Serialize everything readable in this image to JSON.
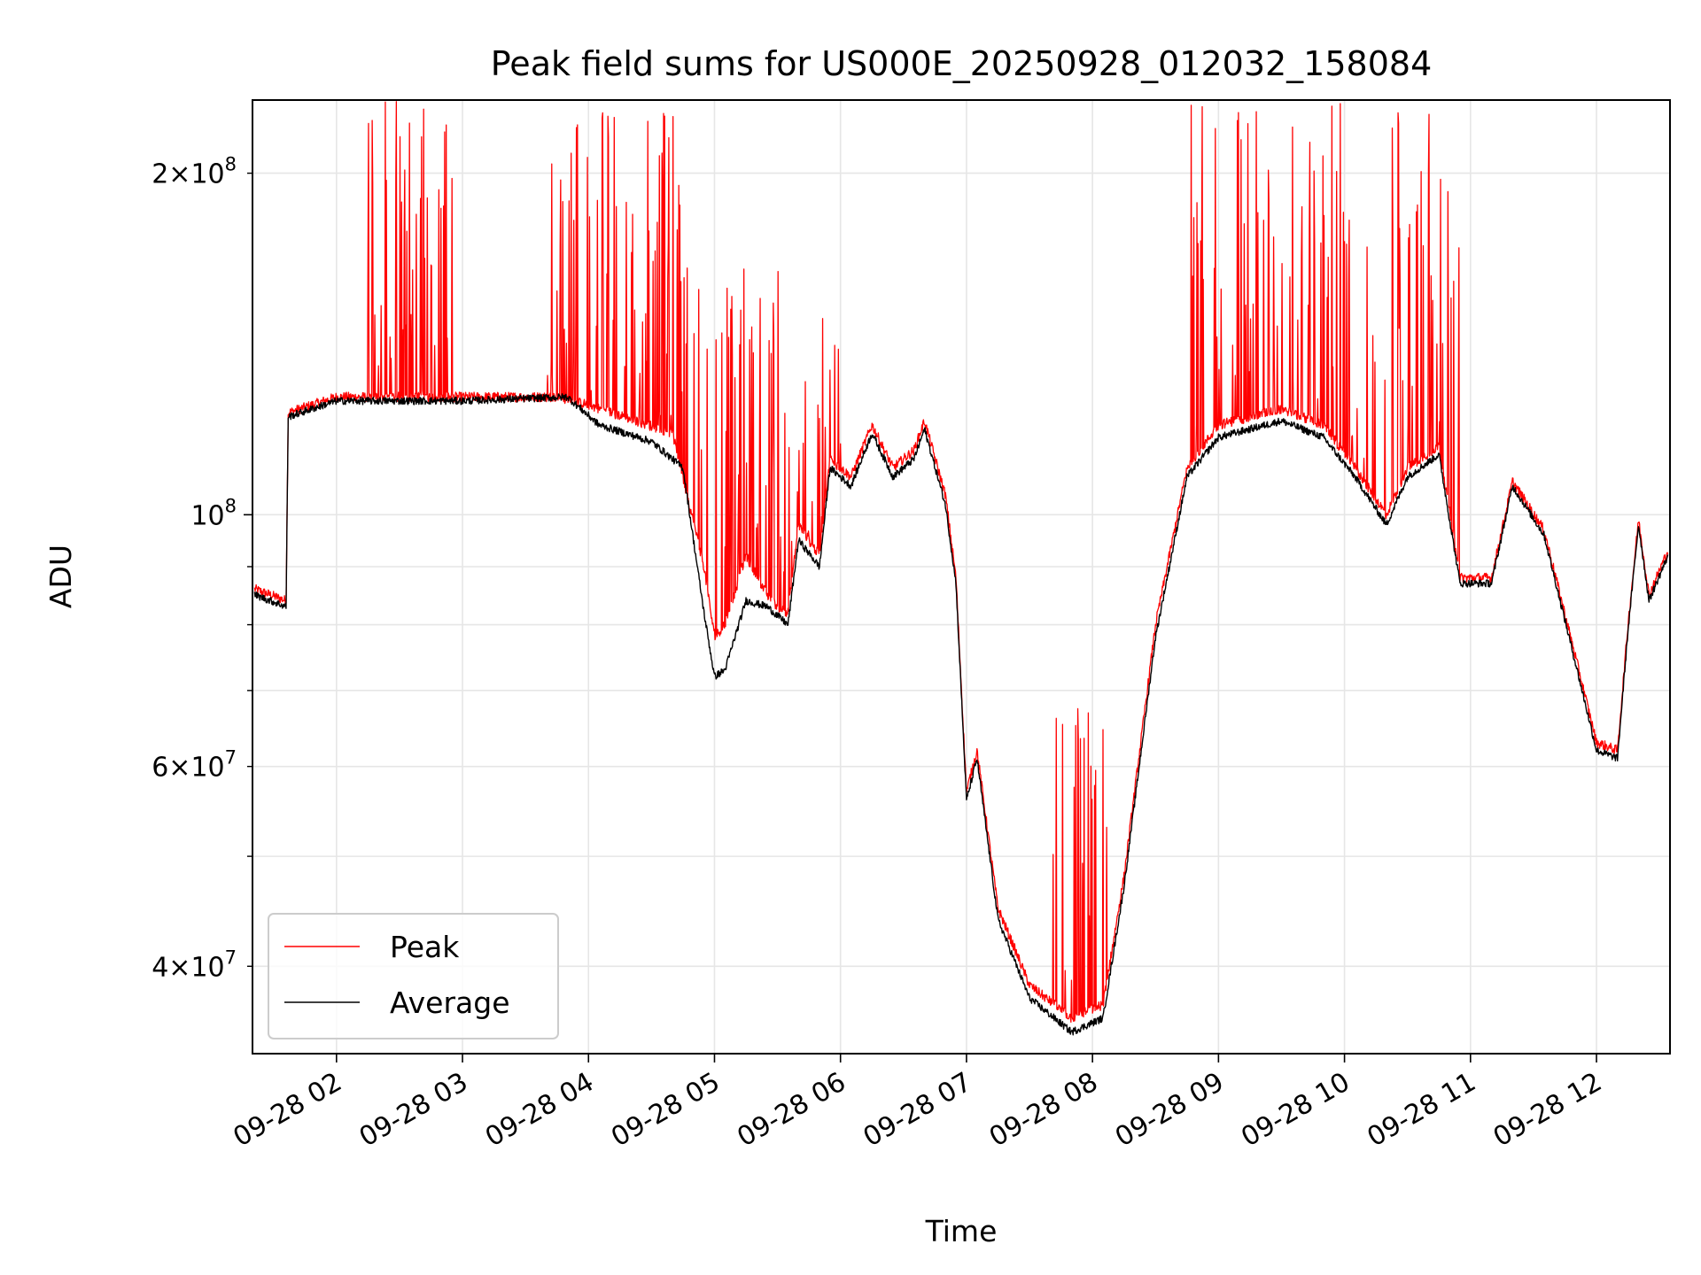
{
  "chart_data": {
    "type": "line",
    "title": "Peak field sums for US000E_20250928_012032_158084",
    "xlabel": "Time",
    "ylabel": "ADU",
    "yscale": "log",
    "grid": true,
    "legend_position": "lower-left",
    "xlim": [
      "2025-09-28 01:20",
      "2025-09-28 12:35"
    ],
    "ylim": [
      33500000,
      232000000
    ],
    "x_ticks": [
      {
        "t": "2025-09-28 02:00",
        "label": "09-28 02"
      },
      {
        "t": "2025-09-28 03:00",
        "label": "09-28 03"
      },
      {
        "t": "2025-09-28 04:00",
        "label": "09-28 04"
      },
      {
        "t": "2025-09-28 05:00",
        "label": "09-28 05"
      },
      {
        "t": "2025-09-28 06:00",
        "label": "09-28 06"
      },
      {
        "t": "2025-09-28 07:00",
        "label": "09-28 07"
      },
      {
        "t": "2025-09-28 08:00",
        "label": "09-28 08"
      },
      {
        "t": "2025-09-28 09:00",
        "label": "09-28 09"
      },
      {
        "t": "2025-09-28 10:00",
        "label": "09-28 10"
      },
      {
        "t": "2025-09-28 11:00",
        "label": "09-28 11"
      },
      {
        "t": "2025-09-28 12:00",
        "label": "09-28 12"
      }
    ],
    "y_ticks_major": [
      {
        "value": 100000000,
        "mantissa": "",
        "base": "10",
        "exp": "8"
      }
    ],
    "y_ticks_minor_labeled": [
      {
        "value": 40000000,
        "mantissa": "4",
        "base": "10",
        "exp": "7"
      },
      {
        "value": 60000000,
        "mantissa": "6",
        "base": "10",
        "exp": "7"
      },
      {
        "value": 200000000,
        "mantissa": "2",
        "base": "10",
        "exp": "8"
      }
    ],
    "y_ticks_minor_unlabeled": [
      50000000,
      70000000,
      80000000,
      90000000
    ],
    "series": [
      {
        "name": "Peak",
        "color": "#ff0000",
        "style": "spiky",
        "points": [
          [
            "2025-09-28 01:21",
            86000000
          ],
          [
            "2025-09-28 01:36",
            84000000
          ],
          [
            "2025-09-28 01:37",
            123000000
          ],
          [
            "2025-09-28 02:00",
            127000000
          ],
          [
            "2025-09-28 03:00",
            127000000
          ],
          [
            "2025-09-28 03:45",
            127000000
          ],
          [
            "2025-09-28 04:00",
            125000000
          ],
          [
            "2025-09-28 04:40",
            118000000
          ],
          [
            "2025-09-28 04:55",
            90000000
          ],
          [
            "2025-09-28 05:00",
            78000000
          ],
          [
            "2025-09-28 05:05",
            80000000
          ],
          [
            "2025-09-28 05:15",
            92000000
          ],
          [
            "2025-09-28 05:25",
            85000000
          ],
          [
            "2025-09-28 05:30",
            83000000
          ],
          [
            "2025-09-28 05:35",
            82000000
          ],
          [
            "2025-09-28 05:40",
            98000000
          ],
          [
            "2025-09-28 05:50",
            92000000
          ],
          [
            "2025-09-28 05:55",
            112000000
          ],
          [
            "2025-09-28 06:05",
            108000000
          ],
          [
            "2025-09-28 06:15",
            120000000
          ],
          [
            "2025-09-28 06:25",
            110000000
          ],
          [
            "2025-09-28 06:35",
            114000000
          ],
          [
            "2025-09-28 06:40",
            121000000
          ],
          [
            "2025-09-28 06:50",
            104000000
          ],
          [
            "2025-09-28 06:55",
            88000000
          ],
          [
            "2025-09-28 07:00",
            57000000
          ],
          [
            "2025-09-28 07:05",
            62000000
          ],
          [
            "2025-09-28 07:15",
            45000000
          ],
          [
            "2025-09-28 07:30",
            38500000
          ],
          [
            "2025-09-28 07:50",
            36000000
          ],
          [
            "2025-09-28 08:05",
            37000000
          ],
          [
            "2025-09-28 08:15",
            48000000
          ],
          [
            "2025-09-28 08:30",
            80000000
          ],
          [
            "2025-09-28 08:45",
            110000000
          ],
          [
            "2025-09-28 09:00",
            120000000
          ],
          [
            "2025-09-28 09:30",
            124000000
          ],
          [
            "2025-09-28 09:50",
            120000000
          ],
          [
            "2025-09-28 10:05",
            110000000
          ],
          [
            "2025-09-28 10:20",
            100000000
          ],
          [
            "2025-09-28 10:30",
            110000000
          ],
          [
            "2025-09-28 10:45",
            115000000
          ],
          [
            "2025-09-28 10:55",
            88000000
          ],
          [
            "2025-09-28 11:10",
            88000000
          ],
          [
            "2025-09-28 11:20",
            107000000
          ],
          [
            "2025-09-28 11:35",
            97000000
          ],
          [
            "2025-09-28 11:50",
            75000000
          ],
          [
            "2025-09-28 12:00",
            63000000
          ],
          [
            "2025-09-28 12:10",
            62000000
          ],
          [
            "2025-09-28 12:15",
            80000000
          ],
          [
            "2025-09-28 12:20",
            99000000
          ],
          [
            "2025-09-28 12:25",
            85000000
          ],
          [
            "2025-09-28 12:34",
            93000000
          ]
        ]
      },
      {
        "name": "Average",
        "color": "#000000",
        "style": "line",
        "points": [
          [
            "2025-09-28 01:21",
            85000000
          ],
          [
            "2025-09-28 01:36",
            83000000
          ],
          [
            "2025-09-28 01:37",
            122000000
          ],
          [
            "2025-09-28 02:00",
            126000000
          ],
          [
            "2025-09-28 03:00",
            126000000
          ],
          [
            "2025-09-28 03:50",
            127000000
          ],
          [
            "2025-09-28 04:05",
            120000000
          ],
          [
            "2025-09-28 04:30",
            116000000
          ],
          [
            "2025-09-28 04:45",
            110000000
          ],
          [
            "2025-09-28 04:55",
            82000000
          ],
          [
            "2025-09-28 05:00",
            72000000
          ],
          [
            "2025-09-28 05:05",
            73000000
          ],
          [
            "2025-09-28 05:15",
            84000000
          ],
          [
            "2025-09-28 05:25",
            83000000
          ],
          [
            "2025-09-28 05:35",
            80000000
          ],
          [
            "2025-09-28 05:40",
            95000000
          ],
          [
            "2025-09-28 05:50",
            90000000
          ],
          [
            "2025-09-28 05:55",
            110000000
          ],
          [
            "2025-09-28 06:05",
            106000000
          ],
          [
            "2025-09-28 06:15",
            118000000
          ],
          [
            "2025-09-28 06:25",
            108000000
          ],
          [
            "2025-09-28 06:35",
            112000000
          ],
          [
            "2025-09-28 06:40",
            119000000
          ],
          [
            "2025-09-28 06:50",
            102000000
          ],
          [
            "2025-09-28 06:55",
            87000000
          ],
          [
            "2025-09-28 07:00",
            56000000
          ],
          [
            "2025-09-28 07:05",
            61000000
          ],
          [
            "2025-09-28 07:15",
            44000000
          ],
          [
            "2025-09-28 07:30",
            37500000
          ],
          [
            "2025-09-28 07:50",
            35000000
          ],
          [
            "2025-09-28 08:05",
            36000000
          ],
          [
            "2025-09-28 08:15",
            47000000
          ],
          [
            "2025-09-28 08:30",
            78000000
          ],
          [
            "2025-09-28 08:45",
            108000000
          ],
          [
            "2025-09-28 09:00",
            117000000
          ],
          [
            "2025-09-28 09:30",
            121000000
          ],
          [
            "2025-09-28 09:50",
            117000000
          ],
          [
            "2025-09-28 10:05",
            108000000
          ],
          [
            "2025-09-28 10:20",
            98000000
          ],
          [
            "2025-09-28 10:30",
            108000000
          ],
          [
            "2025-09-28 10:45",
            113000000
          ],
          [
            "2025-09-28 10:55",
            87000000
          ],
          [
            "2025-09-28 11:10",
            87000000
          ],
          [
            "2025-09-28 11:20",
            106000000
          ],
          [
            "2025-09-28 11:35",
            96000000
          ],
          [
            "2025-09-28 11:50",
            74000000
          ],
          [
            "2025-09-28 12:00",
            62000000
          ],
          [
            "2025-09-28 12:10",
            61000000
          ],
          [
            "2025-09-28 12:15",
            79000000
          ],
          [
            "2025-09-28 12:20",
            98000000
          ],
          [
            "2025-09-28 12:25",
            84000000
          ],
          [
            "2025-09-28 12:34",
            92000000
          ]
        ]
      }
    ],
    "peak_spike_regions": [
      {
        "from": "2025-09-28 02:15",
        "to": "2025-09-28 02:55",
        "max": 232000000
      },
      {
        "from": "2025-09-28 03:40",
        "to": "2025-09-28 04:45",
        "max": 232000000
      },
      {
        "from": "2025-09-28 04:45",
        "to": "2025-09-28 06:00",
        "max": 165000000
      },
      {
        "from": "2025-09-28 07:40",
        "to": "2025-09-28 08:10",
        "max": 70000000
      },
      {
        "from": "2025-09-28 08:45",
        "to": "2025-09-28 10:55",
        "max": 232000000
      }
    ]
  }
}
